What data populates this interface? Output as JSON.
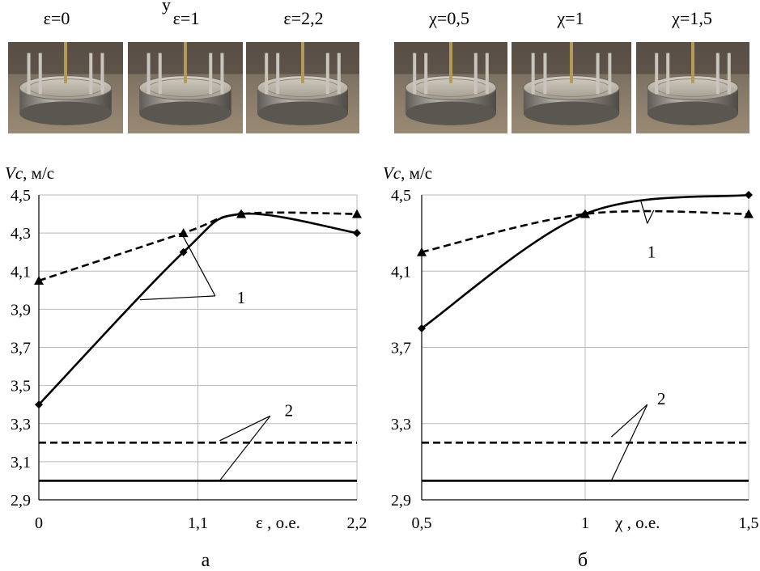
{
  "header_text": "у",
  "photos": {
    "left": [
      {
        "label": "ε=0"
      },
      {
        "label": "ε=1"
      },
      {
        "label": "ε=2,2"
      }
    ],
    "right": [
      {
        "label": "χ=0,5"
      },
      {
        "label": "χ=1"
      },
      {
        "label": "χ=1,5"
      }
    ]
  },
  "chart_data": [
    {
      "type": "line",
      "panel_label": "а",
      "ylabel_main": "Vc",
      "ylabel_unit": ", м/с",
      "xlabel_main": "ε",
      "xlabel_unit": ", о.е.",
      "xlim": [
        0,
        2.2
      ],
      "ylim": [
        2.9,
        4.5
      ],
      "x_ticks": [
        {
          "value": 0,
          "label": "0"
        },
        {
          "value": 1.1,
          "label": "1,1"
        },
        {
          "value": 2.2,
          "label": "2,2"
        }
      ],
      "y_ticks": [
        {
          "value": 2.9,
          "label": "2,9"
        },
        {
          "value": 3.1,
          "label": "3,1"
        },
        {
          "value": 3.3,
          "label": "3,3"
        },
        {
          "value": 3.5,
          "label": "3,5"
        },
        {
          "value": 3.7,
          "label": "3,7"
        },
        {
          "value": 3.9,
          "label": "3,9"
        },
        {
          "value": 4.1,
          "label": "4,1"
        },
        {
          "value": 4.3,
          "label": "4,3"
        },
        {
          "value": 4.5,
          "label": "4,5"
        }
      ],
      "series": [
        {
          "style": "solid",
          "marker": "diamond",
          "x": [
            0,
            1.0,
            1.4,
            2.2
          ],
          "y": [
            3.4,
            4.2,
            4.4,
            4.3
          ]
        },
        {
          "style": "dashed",
          "marker": "triangle",
          "x": [
            0,
            1.0,
            1.4,
            2.2
          ],
          "y": [
            4.05,
            4.3,
            4.4,
            4.4
          ]
        },
        {
          "style": "dashed",
          "marker": "none",
          "x": [
            0,
            2.2
          ],
          "y": [
            3.2,
            3.2
          ]
        },
        {
          "style": "solid",
          "marker": "none",
          "x": [
            0,
            2.2
          ],
          "y": [
            3.0,
            3.0
          ]
        }
      ],
      "annotations": [
        {
          "text": "1",
          "x": 1.37,
          "y": 3.96,
          "leaders": [
            [
              0.7,
              3.95
            ],
            [
              1.0,
              4.28
            ]
          ],
          "joint": [
            1.22,
            3.97
          ]
        },
        {
          "text": "2",
          "x": 1.7,
          "y": 3.37,
          "leaders": [
            [
              1.25,
              3.21
            ],
            [
              1.25,
              3.0
            ]
          ],
          "joint": [
            1.6,
            3.34
          ]
        }
      ]
    },
    {
      "type": "line",
      "panel_label": "б",
      "ylabel_main": "Vc",
      "ylabel_unit": ", м/с",
      "xlabel_main": "χ",
      "xlabel_unit": ", о.е.",
      "xlim": [
        0.5,
        1.5
      ],
      "ylim": [
        2.9,
        4.5
      ],
      "x_ticks": [
        {
          "value": 0.5,
          "label": "0,5"
        },
        {
          "value": 1.0,
          "label": "1"
        },
        {
          "value": 1.5,
          "label": "1,5"
        }
      ],
      "y_ticks": [
        {
          "value": 2.9,
          "label": "2,9"
        },
        {
          "value": 3.3,
          "label": "3,3"
        },
        {
          "value": 3.7,
          "label": "3,7"
        },
        {
          "value": 4.1,
          "label": "4,1"
        },
        {
          "value": 4.5,
          "label": "4,5"
        }
      ],
      "series": [
        {
          "style": "solid",
          "marker": "diamond",
          "x": [
            0.5,
            1.0,
            1.5
          ],
          "y": [
            3.8,
            4.4,
            4.5
          ]
        },
        {
          "style": "dashed",
          "marker": "triangle",
          "x": [
            0.5,
            1.0,
            1.5
          ],
          "y": [
            4.2,
            4.4,
            4.4
          ]
        },
        {
          "style": "dashed",
          "marker": "none",
          "x": [
            0.5,
            1.5
          ],
          "y": [
            3.2,
            3.2
          ]
        },
        {
          "style": "solid",
          "marker": "none",
          "x": [
            0.5,
            1.5
          ],
          "y": [
            3.0,
            3.0
          ]
        }
      ],
      "annotations": [
        {
          "text": "1",
          "x": 1.19,
          "y": 4.2,
          "leaders": [
            [
              1.17,
              4.47
            ],
            [
              1.21,
              4.42
            ]
          ],
          "joint": [
            1.19,
            4.35
          ]
        },
        {
          "text": "2",
          "x": 1.22,
          "y": 3.43,
          "leaders": [
            [
              1.08,
              3.23
            ],
            [
              1.08,
              3.0
            ]
          ],
          "joint": [
            1.19,
            3.4
          ]
        }
      ]
    }
  ]
}
